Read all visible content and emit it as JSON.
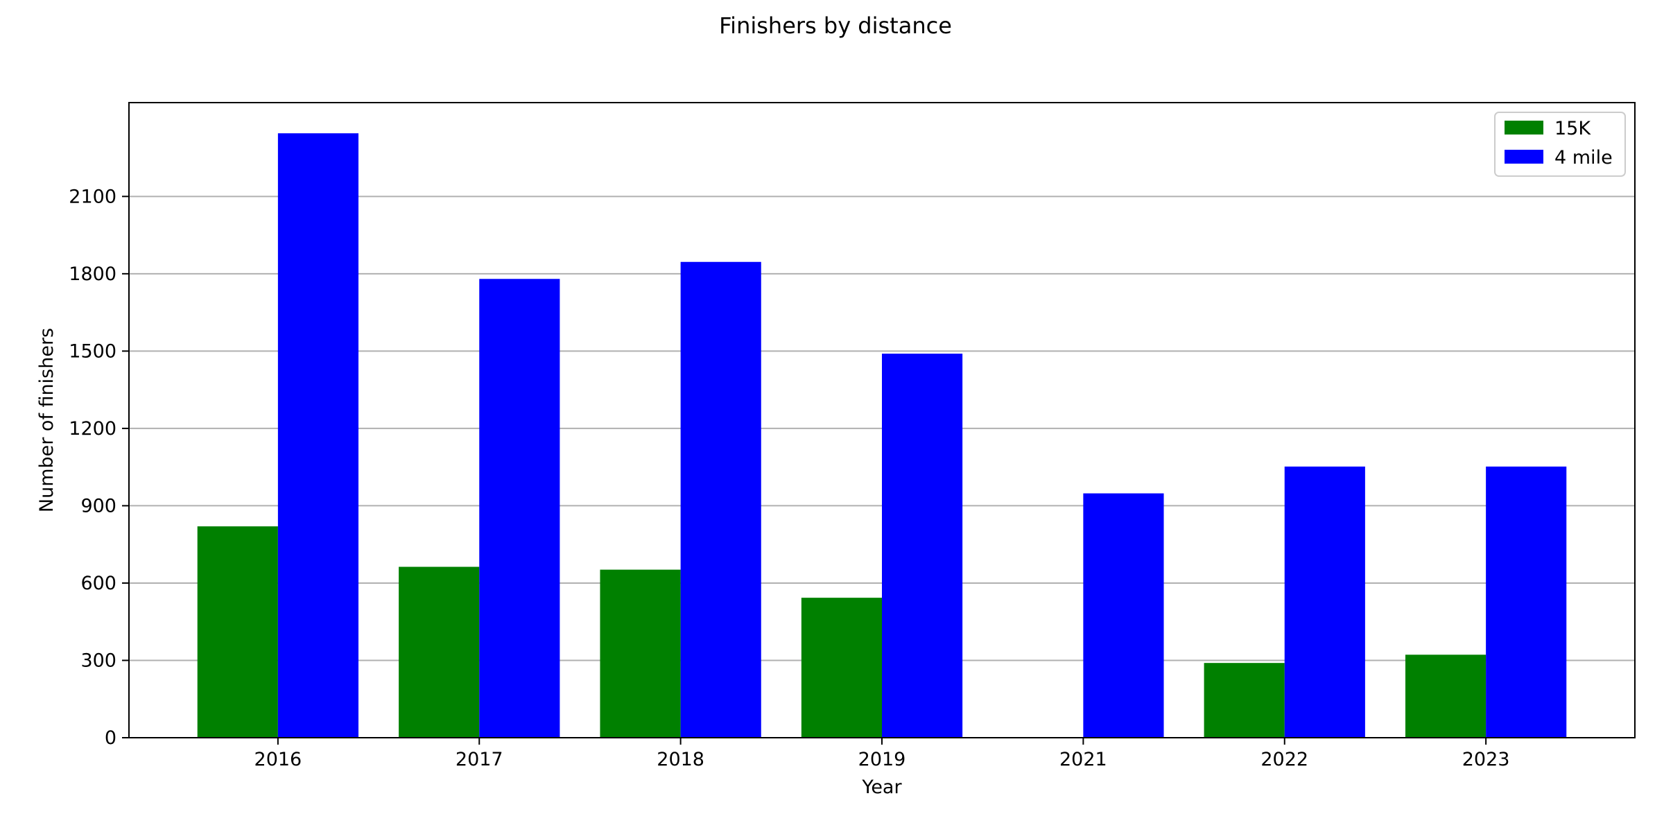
{
  "chart_data": {
    "type": "bar",
    "title": "Finishers by distance",
    "xlabel": "Year",
    "ylabel": "Number of finishers",
    "categories": [
      "2016",
      "2017",
      "2018",
      "2019",
      "2021",
      "2022",
      "2023"
    ],
    "series": [
      {
        "name": "15K",
        "color": "#008000",
        "values": [
          820,
          663,
          652,
          543,
          0,
          290,
          322
        ]
      },
      {
        "name": "4 mile",
        "color": "#0000ff",
        "values": [
          2345,
          1780,
          1846,
          1490,
          948,
          1052,
          1052
        ]
      }
    ],
    "yticks": [
      0,
      300,
      600,
      900,
      1200,
      1500,
      1800,
      2100
    ],
    "ylim": [
      0,
      2464
    ],
    "grid": "y-major",
    "legend_position": "top-right"
  }
}
